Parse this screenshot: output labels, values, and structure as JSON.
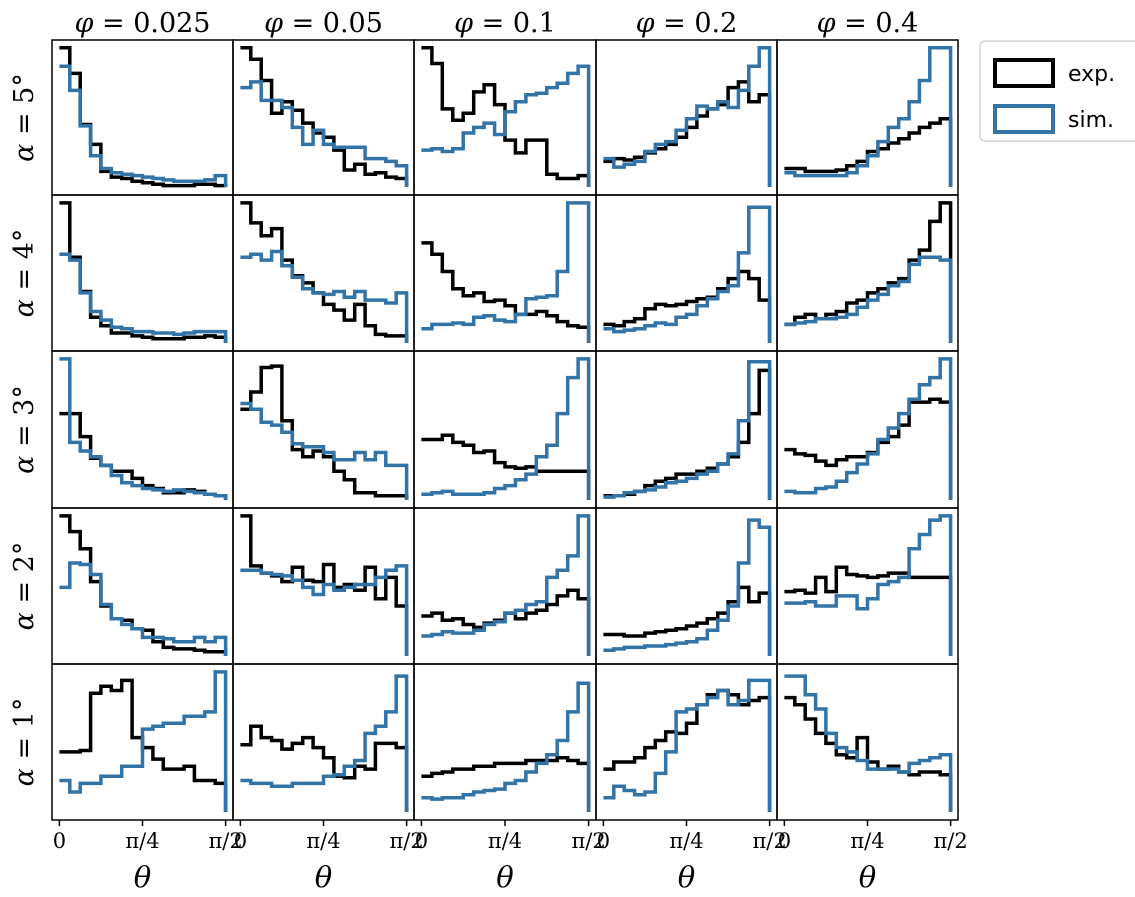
{
  "chart_data": {
    "type": "step-histogram-grid",
    "col_labels": [
      "0.025",
      "0.05",
      "0.1",
      "0.2",
      "0.4"
    ],
    "row_labels": [
      "5°",
      "4°",
      "3°",
      "2°",
      "1°"
    ],
    "col_symbol": "φ",
    "row_symbol": "α",
    "x_symbol": "θ",
    "xtick_labels": [
      "0",
      "π/4",
      "π/2"
    ],
    "xticks_deg": [
      0,
      45,
      90
    ],
    "x_range_deg": [
      -4,
      94
    ],
    "legend": {
      "placement": "upper-right-outside",
      "items": [
        {
          "key": "exp",
          "label": "exp.",
          "color": "#000000"
        },
        {
          "key": "sim",
          "label": "sim.",
          "color": "#3274a8"
        }
      ]
    },
    "colors": {
      "exp": "#000000",
      "sim": "#3274a8"
    },
    "rows": [
      {
        "cells": [
          {
            "exp": [
              0.98,
              0.8,
              0.44,
              0.3,
              0.11,
              0.07,
              0.06,
              0.04,
              0.03,
              0.02,
              0.01,
              0.01,
              0.01,
              0.02,
              0.02,
              0.01
            ],
            "sim": [
              0.85,
              0.68,
              0.43,
              0.22,
              0.13,
              0.1,
              0.09,
              0.08,
              0.07,
              0.06,
              0.05,
              0.04,
              0.04,
              0.04,
              0.05,
              0.08
            ]
          },
          {
            "exp": [
              0.98,
              0.9,
              0.75,
              0.52,
              0.6,
              0.54,
              0.45,
              0.38,
              0.35,
              0.26,
              0.12,
              0.16,
              0.09,
              0.1,
              0.07,
              0.06
            ],
            "sim": [
              0.7,
              0.74,
              0.61,
              0.61,
              0.56,
              0.42,
              0.3,
              0.4,
              0.3,
              0.28,
              0.28,
              0.28,
              0.2,
              0.2,
              0.18,
              0.15
            ]
          },
          {
            "exp": [
              0.98,
              0.87,
              0.55,
              0.47,
              0.52,
              0.67,
              0.72,
              0.58,
              0.33,
              0.24,
              0.33,
              0.33,
              0.09,
              0.06,
              0.06,
              0.08
            ],
            "sim": [
              0.26,
              0.27,
              0.25,
              0.27,
              0.38,
              0.42,
              0.45,
              0.37,
              0.53,
              0.6,
              0.65,
              0.66,
              0.7,
              0.73,
              0.8,
              0.85
            ]
          },
          {
            "exp": [
              0.18,
              0.2,
              0.19,
              0.21,
              0.24,
              0.27,
              0.3,
              0.35,
              0.42,
              0.5,
              0.55,
              0.58,
              0.7,
              0.74,
              0.6,
              0.65
            ],
            "sim": [
              0.2,
              0.14,
              0.16,
              0.18,
              0.25,
              0.3,
              0.32,
              0.4,
              0.48,
              0.57,
              0.55,
              0.6,
              0.56,
              0.68,
              0.85,
              0.98
            ]
          },
          {
            "exp": [
              0.13,
              0.13,
              0.11,
              0.11,
              0.11,
              0.12,
              0.15,
              0.18,
              0.25,
              0.27,
              0.31,
              0.34,
              0.38,
              0.42,
              0.45,
              0.48
            ],
            "sim": [
              0.1,
              0.08,
              0.08,
              0.08,
              0.08,
              0.08,
              0.1,
              0.15,
              0.22,
              0.32,
              0.42,
              0.48,
              0.6,
              0.75,
              0.98,
              0.98
            ]
          }
        ]
      },
      {
        "cells": [
          {
            "exp": [
              0.98,
              0.6,
              0.36,
              0.18,
              0.12,
              0.07,
              0.07,
              0.05,
              0.04,
              0.03,
              0.03,
              0.03,
              0.04,
              0.04,
              0.05,
              0.04
            ],
            "sim": [
              0.62,
              0.58,
              0.35,
              0.22,
              0.16,
              0.11,
              0.1,
              0.08,
              0.08,
              0.07,
              0.07,
              0.06,
              0.07,
              0.08,
              0.08,
              0.08
            ]
          },
          {
            "exp": [
              0.98,
              0.84,
              0.75,
              0.8,
              0.58,
              0.47,
              0.42,
              0.35,
              0.27,
              0.23,
              0.16,
              0.27,
              0.12,
              0.06,
              0.05,
              0.05
            ],
            "sim": [
              0.6,
              0.62,
              0.58,
              0.64,
              0.54,
              0.46,
              0.38,
              0.35,
              0.34,
              0.36,
              0.32,
              0.36,
              0.3,
              0.3,
              0.28,
              0.35
            ]
          },
          {
            "exp": [
              0.7,
              0.62,
              0.5,
              0.38,
              0.33,
              0.35,
              0.29,
              0.3,
              0.26,
              0.2,
              0.2,
              0.22,
              0.19,
              0.15,
              0.12,
              0.11
            ],
            "sim": [
              0.1,
              0.13,
              0.13,
              0.14,
              0.13,
              0.18,
              0.19,
              0.16,
              0.15,
              0.2,
              0.31,
              0.32,
              0.33,
              0.5,
              0.98,
              0.98
            ]
          },
          {
            "exp": [
              0.13,
              0.12,
              0.15,
              0.17,
              0.24,
              0.27,
              0.26,
              0.27,
              0.29,
              0.31,
              0.32,
              0.38,
              0.45,
              0.5,
              0.45,
              0.3
            ],
            "sim": [
              0.1,
              0.08,
              0.09,
              0.1,
              0.12,
              0.14,
              0.13,
              0.18,
              0.2,
              0.26,
              0.31,
              0.36,
              0.4,
              0.63,
              0.95,
              0.95
            ]
          },
          {
            "exp": [
              0.13,
              0.18,
              0.2,
              0.17,
              0.2,
              0.22,
              0.28,
              0.3,
              0.35,
              0.38,
              0.42,
              0.45,
              0.58,
              0.65,
              0.85,
              0.98
            ],
            "sim": [
              0.13,
              0.14,
              0.15,
              0.17,
              0.17,
              0.18,
              0.2,
              0.25,
              0.3,
              0.34,
              0.4,
              0.43,
              0.55,
              0.6,
              0.6,
              0.58
            ]
          }
        ]
      },
      {
        "cells": [
          {
            "exp": [
              0.6,
              0.6,
              0.44,
              0.29,
              0.24,
              0.2,
              0.2,
              0.15,
              0.1,
              0.08,
              0.05,
              0.05,
              0.07,
              0.06,
              0.04,
              0.03
            ],
            "sim": [
              0.98,
              0.4,
              0.34,
              0.3,
              0.24,
              0.17,
              0.12,
              0.1,
              0.08,
              0.07,
              0.06,
              0.07,
              0.06,
              0.05,
              0.04,
              0.03
            ]
          },
          {
            "exp": [
              0.63,
              0.75,
              0.92,
              0.93,
              0.55,
              0.35,
              0.3,
              0.34,
              0.3,
              0.2,
              0.14,
              0.05,
              0.05,
              0.03,
              0.03,
              0.03
            ],
            "sim": [
              0.67,
              0.63,
              0.54,
              0.52,
              0.47,
              0.39,
              0.37,
              0.37,
              0.33,
              0.28,
              0.28,
              0.33,
              0.28,
              0.33,
              0.24,
              0.24
            ]
          },
          {
            "exp": [
              0.42,
              0.42,
              0.45,
              0.4,
              0.38,
              0.33,
              0.34,
              0.26,
              0.23,
              0.22,
              0.23,
              0.2,
              0.2,
              0.2,
              0.2,
              0.2
            ],
            "sim": [
              0.04,
              0.05,
              0.06,
              0.04,
              0.04,
              0.04,
              0.05,
              0.08,
              0.1,
              0.14,
              0.18,
              0.3,
              0.38,
              0.6,
              0.85,
              0.98
            ]
          },
          {
            "exp": [
              0.03,
              0.03,
              0.04,
              0.06,
              0.1,
              0.13,
              0.15,
              0.18,
              0.18,
              0.2,
              0.22,
              0.25,
              0.3,
              0.4,
              0.6,
              0.9
            ],
            "sim": [
              0.02,
              0.03,
              0.05,
              0.06,
              0.07,
              0.09,
              0.12,
              0.13,
              0.15,
              0.18,
              0.2,
              0.25,
              0.32,
              0.55,
              0.96,
              0.96
            ]
          },
          {
            "exp": [
              0.35,
              0.32,
              0.31,
              0.27,
              0.24,
              0.28,
              0.3,
              0.3,
              0.33,
              0.4,
              0.44,
              0.52,
              0.68,
              0.68,
              0.7,
              0.68
            ],
            "sim": [
              0.06,
              0.05,
              0.05,
              0.08,
              0.09,
              0.13,
              0.19,
              0.25,
              0.32,
              0.42,
              0.5,
              0.6,
              0.7,
              0.8,
              0.85,
              0.98
            ]
          }
        ]
      },
      {
        "cells": [
          {
            "exp": [
              0.98,
              0.87,
              0.75,
              0.52,
              0.35,
              0.26,
              0.25,
              0.19,
              0.18,
              0.1,
              0.06,
              0.05,
              0.05,
              0.04,
              0.03,
              0.03
            ],
            "sim": [
              0.48,
              0.65,
              0.64,
              0.57,
              0.36,
              0.26,
              0.22,
              0.19,
              0.13,
              0.13,
              0.12,
              0.1,
              0.1,
              0.13,
              0.1,
              0.13
            ]
          },
          {
            "exp": [
              0.98,
              0.63,
              0.58,
              0.56,
              0.52,
              0.62,
              0.53,
              0.52,
              0.64,
              0.48,
              0.5,
              0.46,
              0.62,
              0.4,
              0.55,
              0.35
            ],
            "sim": [
              0.6,
              0.6,
              0.58,
              0.57,
              0.56,
              0.53,
              0.48,
              0.43,
              0.5,
              0.46,
              0.48,
              0.5,
              0.5,
              0.55,
              0.6,
              0.63
            ]
          },
          {
            "exp": [
              0.28,
              0.3,
              0.25,
              0.26,
              0.22,
              0.2,
              0.23,
              0.25,
              0.3,
              0.26,
              0.3,
              0.32,
              0.36,
              0.42,
              0.46,
              0.4
            ],
            "sim": [
              0.14,
              0.15,
              0.17,
              0.16,
              0.16,
              0.18,
              0.22,
              0.24,
              0.3,
              0.32,
              0.36,
              0.38,
              0.55,
              0.6,
              0.7,
              0.98
            ]
          },
          {
            "exp": [
              0.15,
              0.15,
              0.14,
              0.14,
              0.16,
              0.17,
              0.18,
              0.19,
              0.21,
              0.23,
              0.26,
              0.3,
              0.38,
              0.48,
              0.38,
              0.44
            ],
            "sim": [
              0.04,
              0.05,
              0.06,
              0.06,
              0.07,
              0.07,
              0.08,
              0.09,
              0.1,
              0.12,
              0.18,
              0.25,
              0.35,
              0.65,
              0.95,
              0.9
            ]
          },
          {
            "exp": [
              0.45,
              0.46,
              0.44,
              0.55,
              0.45,
              0.62,
              0.57,
              0.56,
              0.55,
              0.56,
              0.58,
              0.58,
              0.55,
              0.55,
              0.55,
              0.55
            ],
            "sim": [
              0.37,
              0.37,
              0.38,
              0.35,
              0.35,
              0.42,
              0.42,
              0.33,
              0.4,
              0.5,
              0.52,
              0.55,
              0.75,
              0.85,
              0.95,
              0.98
            ]
          }
        ]
      },
      {
        "cells": [
          {
            "exp": [
              0.42,
              0.42,
              0.43,
              0.83,
              0.88,
              0.85,
              0.92,
              0.52,
              0.45,
              0.37,
              0.3,
              0.3,
              0.32,
              0.22,
              0.22,
              0.2
            ],
            "sim": [
              0.22,
              0.14,
              0.2,
              0.2,
              0.25,
              0.25,
              0.32,
              0.32,
              0.58,
              0.6,
              0.62,
              0.62,
              0.67,
              0.67,
              0.7,
              0.98
            ]
          },
          {
            "exp": [
              0.47,
              0.6,
              0.52,
              0.5,
              0.44,
              0.48,
              0.52,
              0.45,
              0.38,
              0.25,
              0.24,
              0.32,
              0.3,
              0.48,
              0.48,
              0.45
            ],
            "sim": [
              0.22,
              0.2,
              0.2,
              0.18,
              0.18,
              0.2,
              0.2,
              0.2,
              0.25,
              0.26,
              0.32,
              0.36,
              0.55,
              0.6,
              0.7,
              0.95
            ]
          },
          {
            "exp": [
              0.25,
              0.27,
              0.28,
              0.3,
              0.3,
              0.32,
              0.32,
              0.34,
              0.34,
              0.34,
              0.36,
              0.36,
              0.36,
              0.38,
              0.36,
              0.34
            ],
            "sim": [
              0.1,
              0.09,
              0.1,
              0.1,
              0.12,
              0.14,
              0.15,
              0.16,
              0.2,
              0.22,
              0.28,
              0.34,
              0.4,
              0.5,
              0.7,
              0.9
            ]
          },
          {
            "exp": [
              0.3,
              0.35,
              0.35,
              0.38,
              0.45,
              0.5,
              0.56,
              0.55,
              0.62,
              0.75,
              0.82,
              0.85,
              0.82,
              0.75,
              0.78,
              0.8
            ],
            "sim": [
              0.1,
              0.18,
              0.15,
              0.12,
              0.14,
              0.27,
              0.42,
              0.7,
              0.72,
              0.75,
              0.8,
              0.85,
              0.75,
              0.78,
              0.92,
              0.92
            ]
          },
          {
            "exp": [
              0.8,
              0.75,
              0.65,
              0.55,
              0.48,
              0.4,
              0.38,
              0.52,
              0.35,
              0.3,
              0.32,
              0.28,
              0.26,
              0.28,
              0.28,
              0.26
            ],
            "sim": [
              0.95,
              0.95,
              0.82,
              0.72,
              0.55,
              0.45,
              0.42,
              0.36,
              0.3,
              0.3,
              0.3,
              0.28,
              0.34,
              0.36,
              0.38,
              0.4
            ]
          }
        ]
      }
    ]
  }
}
